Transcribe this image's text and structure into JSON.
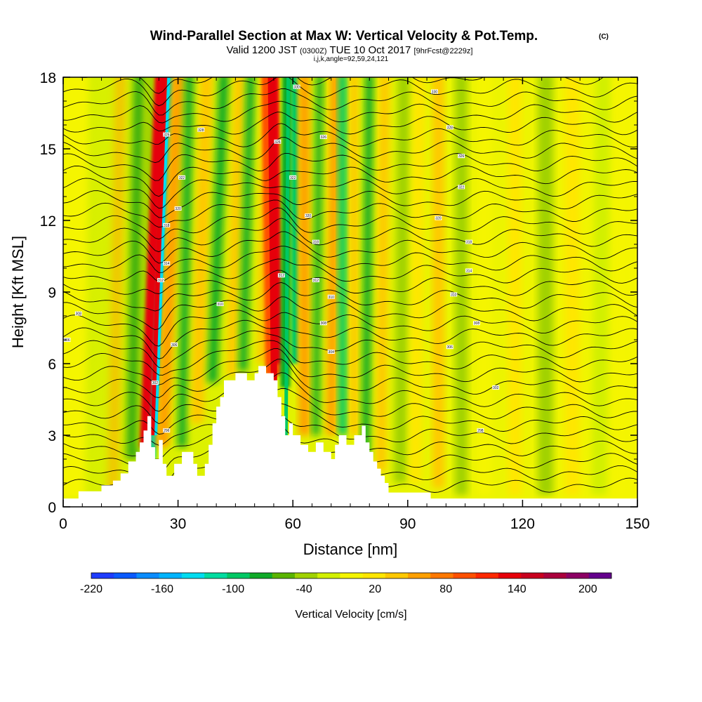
{
  "header": {
    "title": "Wind-Parallel Section at Max W: Vertical Velocity & Pot.Temp.",
    "copyright": "(C)",
    "valid_prefix": "Valid 1200 JST",
    "valid_utc": "(0300Z)",
    "valid_date": "TUE 10 Oct 2017",
    "forecast": "[9hrFcst@2229z]",
    "indices": "i,j,k,angle=92,59,24,121"
  },
  "chart_data": {
    "type": "heatmap",
    "xlabel": "Distance [nm]",
    "ylabel": "Height [Kft MSL]",
    "xlim": [
      0,
      150
    ],
    "ylim": [
      0,
      18
    ],
    "x_ticks": [
      "0",
      "30",
      "60",
      "90",
      "120",
      "150"
    ],
    "y_ticks": [
      "0",
      "3",
      "6",
      "9",
      "12",
      "15",
      "18"
    ],
    "colorbar": {
      "label": "Vertical Velocity [cm/s]",
      "range": [
        -220,
        220
      ],
      "tick_labels": [
        "-220",
        "-160",
        "-100",
        "-40",
        "20",
        "80",
        "140",
        "200"
      ],
      "colors": [
        "#1e3cff",
        "#0a5aff",
        "#0a8cff",
        "#00b4ff",
        "#00dcf0",
        "#00dca0",
        "#00c864",
        "#10aa28",
        "#5ab400",
        "#a0d200",
        "#d2f000",
        "#f5f500",
        "#ffe600",
        "#ffc800",
        "#ffa000",
        "#ff7800",
        "#ff5000",
        "#ff2800",
        "#e6000a",
        "#c8001e",
        "#aa003c",
        "#8c0064",
        "#64008c"
      ]
    },
    "terrain_profile_kft": [
      [
        0,
        0.35
      ],
      [
        4,
        0.35
      ],
      [
        4,
        0.65
      ],
      [
        10,
        0.65
      ],
      [
        10,
        0.9
      ],
      [
        13,
        0.9
      ],
      [
        13,
        1.1
      ],
      [
        15,
        1.1
      ],
      [
        15,
        1.4
      ],
      [
        17,
        1.4
      ],
      [
        17,
        1.9
      ],
      [
        19,
        1.9
      ],
      [
        19,
        2.3
      ],
      [
        20,
        2.3
      ],
      [
        20,
        2.7
      ],
      [
        21,
        2.7
      ],
      [
        21,
        3.2
      ],
      [
        22,
        3.2
      ],
      [
        22,
        3.8
      ],
      [
        23,
        3.8
      ],
      [
        23,
        2.5
      ],
      [
        24,
        2.5
      ],
      [
        24,
        2.0
      ],
      [
        25,
        2.0
      ],
      [
        25,
        2.8
      ],
      [
        26,
        2.8
      ],
      [
        26,
        1.8
      ],
      [
        27,
        1.8
      ],
      [
        27,
        1.3
      ],
      [
        29,
        1.3
      ],
      [
        29,
        1.8
      ],
      [
        31,
        1.8
      ],
      [
        31,
        2.3
      ],
      [
        34,
        2.3
      ],
      [
        34,
        1.8
      ],
      [
        35,
        1.8
      ],
      [
        35,
        1.3
      ],
      [
        37,
        1.3
      ],
      [
        37,
        1.8
      ],
      [
        38,
        1.8
      ],
      [
        38,
        2.6
      ],
      [
        39,
        2.6
      ],
      [
        39,
        3.5
      ],
      [
        40,
        3.5
      ],
      [
        40,
        4.2
      ],
      [
        41,
        4.2
      ],
      [
        41,
        4.6
      ],
      [
        42,
        4.6
      ],
      [
        42,
        5.3
      ],
      [
        45,
        5.3
      ],
      [
        45,
        5.6
      ],
      [
        48,
        5.6
      ],
      [
        48,
        5.3
      ],
      [
        50,
        5.3
      ],
      [
        50,
        5.6
      ],
      [
        51,
        5.6
      ],
      [
        51,
        5.9
      ],
      [
        53,
        5.9
      ],
      [
        53,
        5.6
      ],
      [
        55,
        5.6
      ],
      [
        55,
        5.3
      ],
      [
        56,
        5.3
      ],
      [
        56,
        4.6
      ],
      [
        57,
        4.6
      ],
      [
        57,
        3.8
      ],
      [
        58,
        3.8
      ],
      [
        58,
        3.0
      ],
      [
        59,
        3.0
      ],
      [
        59,
        3.5
      ],
      [
        60,
        3.5
      ],
      [
        60,
        3.0
      ],
      [
        62,
        3.0
      ],
      [
        62,
        2.6
      ],
      [
        64,
        2.6
      ],
      [
        64,
        2.3
      ],
      [
        66,
        2.3
      ],
      [
        66,
        2.7
      ],
      [
        68,
        2.7
      ],
      [
        68,
        2.3
      ],
      [
        70,
        2.3
      ],
      [
        70,
        2.0
      ],
      [
        71,
        2.0
      ],
      [
        71,
        2.6
      ],
      [
        72,
        2.6
      ],
      [
        72,
        3.0
      ],
      [
        74,
        3.0
      ],
      [
        74,
        2.6
      ],
      [
        76,
        2.6
      ],
      [
        76,
        3.0
      ],
      [
        78,
        3.0
      ],
      [
        78,
        3.4
      ],
      [
        79,
        3.4
      ],
      [
        79,
        2.7
      ],
      [
        80,
        2.7
      ],
      [
        80,
        2.3
      ],
      [
        81,
        2.3
      ],
      [
        81,
        1.9
      ],
      [
        82,
        1.9
      ],
      [
        82,
        1.6
      ],
      [
        83,
        1.6
      ],
      [
        83,
        1.3
      ],
      [
        84,
        1.3
      ],
      [
        84,
        1.0
      ],
      [
        85,
        1.0
      ],
      [
        85,
        0.6
      ],
      [
        96,
        0.6
      ],
      [
        96,
        0.35
      ],
      [
        150,
        0.35
      ]
    ],
    "isentrope_labels": [
      {
        "x": 1,
        "y": 7.0,
        "text": "306"
      },
      {
        "x": 4,
        "y": 8.1,
        "text": "308"
      },
      {
        "x": 27,
        "y": 3.2,
        "text": "296"
      },
      {
        "x": 24,
        "y": 5.2,
        "text": "302"
      },
      {
        "x": 29,
        "y": 6.8,
        "text": "306"
      },
      {
        "x": 25.5,
        "y": 9.5,
        "text": "312"
      },
      {
        "x": 27,
        "y": 10.2,
        "text": "314"
      },
      {
        "x": 27,
        "y": 11.8,
        "text": "318"
      },
      {
        "x": 30,
        "y": 12.5,
        "text": "320"
      },
      {
        "x": 31,
        "y": 13.8,
        "text": "322"
      },
      {
        "x": 27,
        "y": 15.6,
        "text": "326"
      },
      {
        "x": 36,
        "y": 15.8,
        "text": "328"
      },
      {
        "x": 41,
        "y": 8.5,
        "text": "310"
      },
      {
        "x": 57,
        "y": 9.7,
        "text": "312"
      },
      {
        "x": 60,
        "y": 13.8,
        "text": "322"
      },
      {
        "x": 56,
        "y": 15.3,
        "text": "326"
      },
      {
        "x": 61,
        "y": 17.6,
        "text": "330"
      },
      {
        "x": 64,
        "y": 12.2,
        "text": "320"
      },
      {
        "x": 66,
        "y": 11.1,
        "text": "318"
      },
      {
        "x": 66,
        "y": 9.5,
        "text": "312"
      },
      {
        "x": 68,
        "y": 7.7,
        "text": "308"
      },
      {
        "x": 68,
        "y": 15.5,
        "text": "326"
      },
      {
        "x": 70,
        "y": 8.8,
        "text": "310"
      },
      {
        "x": 70,
        "y": 6.5,
        "text": "304"
      },
      {
        "x": 97,
        "y": 17.4,
        "text": "330"
      },
      {
        "x": 101,
        "y": 15.9,
        "text": "328"
      },
      {
        "x": 104,
        "y": 14.7,
        "text": "326"
      },
      {
        "x": 104,
        "y": 13.4,
        "text": "322"
      },
      {
        "x": 98,
        "y": 12.1,
        "text": "320"
      },
      {
        "x": 106,
        "y": 11.1,
        "text": "318"
      },
      {
        "x": 106,
        "y": 9.9,
        "text": "314"
      },
      {
        "x": 102,
        "y": 8.9,
        "text": "310"
      },
      {
        "x": 108,
        "y": 7.7,
        "text": "308"
      },
      {
        "x": 101,
        "y": 6.7,
        "text": "306"
      },
      {
        "x": 113,
        "y": 5.0,
        "text": "302"
      },
      {
        "x": 109,
        "y": 3.2,
        "text": "298"
      }
    ]
  }
}
